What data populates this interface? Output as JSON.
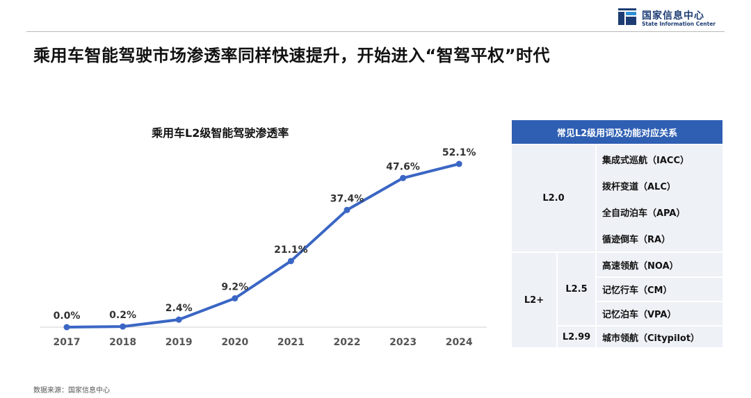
{
  "header": {
    "logo_cn": "国家信息中心",
    "logo_en": "State Information Center",
    "page_title": "乘用车智能驾驶市场渗透率同样快速提升，开始进入“智驾平权”时代"
  },
  "chart_data": {
    "type": "line",
    "title": "乘用车L2级智能驾驶渗透率",
    "categories": [
      "2017",
      "2018",
      "2019",
      "2020",
      "2021",
      "2022",
      "2023",
      "2024"
    ],
    "values": [
      0.0,
      0.2,
      2.4,
      9.2,
      21.1,
      37.4,
      47.6,
      52.1
    ],
    "labels": [
      "0.0%",
      "0.2%",
      "2.4%",
      "9.2%",
      "21.1%",
      "37.4%",
      "47.6%",
      "52.1%"
    ],
    "ylim": [
      0,
      52.1
    ],
    "xlabel": "",
    "ylabel": "",
    "grid": false,
    "line_color": "#3a66c4"
  },
  "table": {
    "header": "常见L2级用词及功能对应关系",
    "l20_label": "L2.0",
    "l20_items": [
      "集成式巡航（IACC）",
      "拨杆变道（ALC）",
      "全自动泊车（APA）",
      "循迹倒车（RA）"
    ],
    "l2plus_label": "L2+",
    "l25_label": "L2.5",
    "l25_items": [
      "高速领航（NOA）",
      "记忆行车（CM）",
      "记忆泊车（VPA）"
    ],
    "l299_label": "L2.99",
    "l299_items": [
      "城市领航（Citypilot）"
    ],
    "header_color": "#2f5fb3",
    "cell_color": "#eef1f6"
  },
  "footer": {
    "source": "数据来源：国家信息中心"
  }
}
